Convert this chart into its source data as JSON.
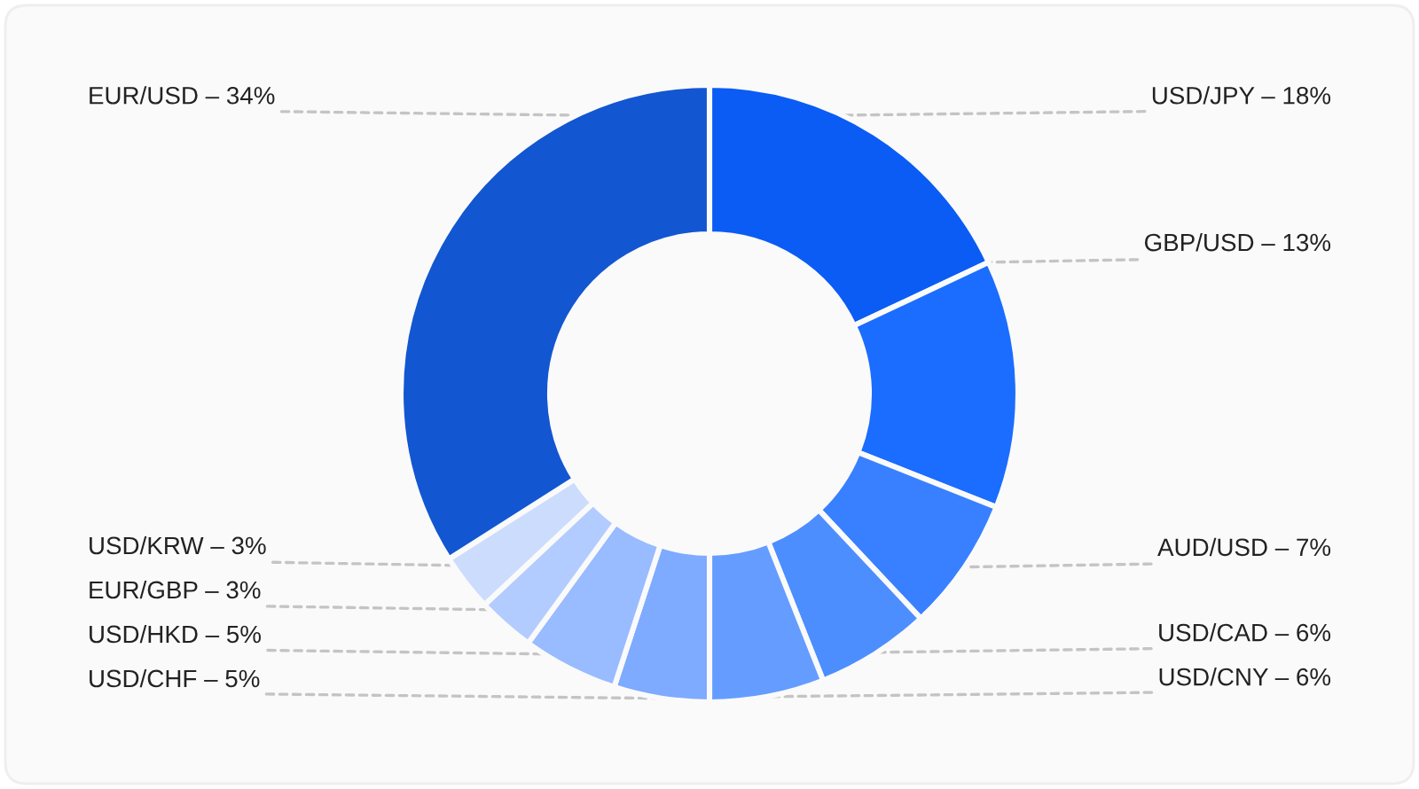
{
  "chart_data": {
    "type": "donut",
    "categories": [
      "USD/JPY – 18%",
      "GBP/USD – 13%",
      "AUD/USD – 7%",
      "USD/CAD – 6%",
      "USD/CNY – 6%",
      "USD/CHF – 5%",
      "USD/HKD – 5%",
      "EUR/GBP – 3%",
      "USD/KRW – 3%",
      "EUR/USD – 34%"
    ],
    "values": [
      18,
      13,
      7,
      6,
      6,
      5,
      5,
      3,
      3,
      34
    ],
    "colors": [
      "#0a5cf5",
      "#1a6dff",
      "#3880ff",
      "#4d8eff",
      "#649dff",
      "#7eaaff",
      "#99bbff",
      "#b3ccff",
      "#ccdcfc",
      "#1256d1"
    ]
  }
}
